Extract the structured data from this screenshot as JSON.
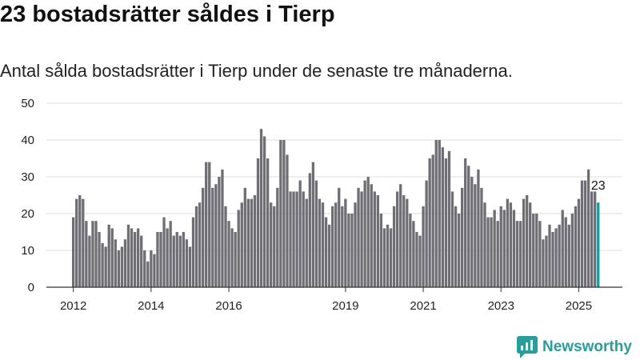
{
  "title": "23 bostadsrätter såldes i Tierp",
  "subtitle": "Antal sålda bostadsrätter i Tierp under de senaste tre månaderna.",
  "brand": {
    "name": "Newsworthy",
    "icon": "newsworthy-logo-icon"
  },
  "colors": {
    "bar": "#6e6e74",
    "highlight": "#1a9a9a",
    "grid": "#dddddd",
    "axis": "#333333"
  },
  "chart_data": {
    "type": "bar",
    "x_start": "2012-01",
    "ylim": [
      0,
      50
    ],
    "yticks": [
      0,
      10,
      20,
      30,
      40,
      50
    ],
    "xticks": [
      "2012",
      "2014",
      "2016",
      "2019",
      "2021",
      "2023",
      "2025"
    ],
    "grid": true,
    "highlight_label": "23",
    "values": [
      19,
      24,
      25,
      24,
      18,
      14,
      18,
      18,
      15,
      12,
      11,
      17,
      16,
      13,
      10,
      11,
      13,
      17,
      16,
      15,
      16,
      14,
      10,
      7,
      10,
      9,
      15,
      15,
      19,
      16,
      18,
      14,
      15,
      14,
      15,
      13,
      11,
      19,
      22,
      23,
      27,
      34,
      34,
      27,
      28,
      30,
      32,
      22,
      18,
      16,
      15,
      21,
      23,
      27,
      24,
      24,
      25,
      35,
      43,
      41,
      35,
      23,
      22,
      27,
      40,
      40,
      36,
      26,
      26,
      26,
      29,
      26,
      24,
      31,
      34,
      29,
      24,
      23,
      19,
      17,
      22,
      23,
      27,
      22,
      24,
      20,
      20,
      23,
      27,
      26,
      29,
      30,
      28,
      26,
      25,
      20,
      16,
      17,
      16,
      22,
      26,
      28,
      25,
      24,
      20,
      18,
      15,
      14,
      22,
      29,
      35,
      36,
      40,
      40,
      38,
      35,
      37,
      26,
      22,
      20,
      27,
      35,
      33,
      30,
      28,
      32,
      27,
      23,
      19,
      19,
      21,
      18,
      22,
      21,
      24,
      23,
      21,
      18,
      18,
      24,
      25,
      23,
      20,
      20,
      18,
      13,
      14,
      17,
      15,
      16,
      17,
      21,
      19,
      17,
      20,
      22,
      24,
      29,
      29,
      32,
      26,
      26,
      23
    ]
  }
}
